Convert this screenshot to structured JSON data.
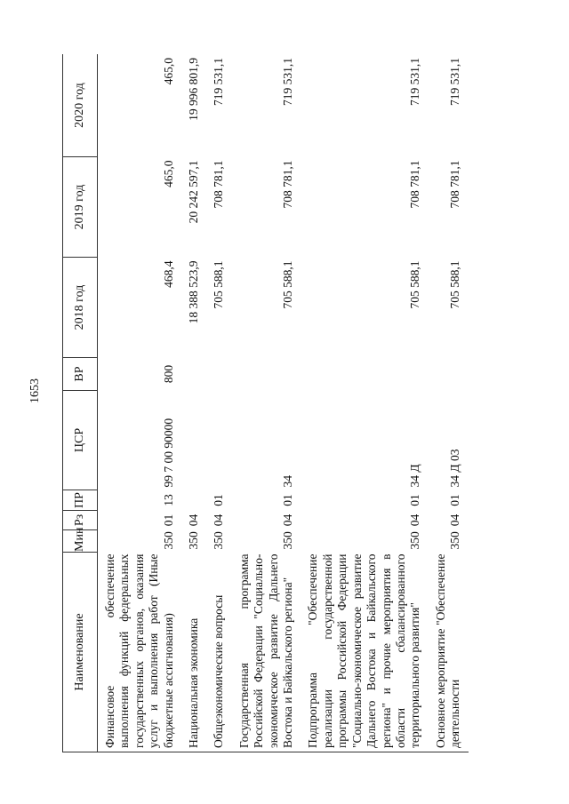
{
  "page_number": "1653",
  "headers": {
    "name": "Наименование",
    "min": "Мин",
    "rz": "Рз",
    "pr": "ПР",
    "csr": "ЦСР",
    "vr": "ВР",
    "y2018": "2018 год",
    "y2019": "2019 год",
    "y2020": "2020 год"
  },
  "rows": [
    {
      "name": "Финансовое обеспечение выполнения функций федеральных государственных органов, оказания услуг и выполнения работ (Иные бюджетные ассигнования)",
      "min": "350",
      "rz": "01",
      "pr": "13",
      "csr": "99 7 00 90000",
      "vr": "800",
      "y2018": "468,4",
      "y2019": "465,0",
      "y2020": "465,0"
    },
    {
      "name": "Национальная экономика",
      "min": "350",
      "rz": "04",
      "pr": "",
      "csr": "",
      "vr": "",
      "y2018": "18 388 523,9",
      "y2019": "20 242 597,1",
      "y2020": "19 996 801,9"
    },
    {
      "name": "Общеэкономические вопросы",
      "min": "350",
      "rz": "04",
      "pr": "01",
      "csr": "",
      "vr": "",
      "y2018": "705 588,1",
      "y2019": "708 781,1",
      "y2020": "719 531,1"
    },
    {
      "name": "Государственная программа Российской Федерации \"Социально-экономическое развитие Дальнего Востока и Байкальского региона\"",
      "min": "350",
      "rz": "04",
      "pr": "01",
      "csr": "34",
      "vr": "",
      "y2018": "705 588,1",
      "y2019": "708 781,1",
      "y2020": "719 531,1"
    },
    {
      "name": "Подпрограмма \"Обеспечение реализации государственной программы Российской Федерации \"Социально-экономическое развитие Дальнего Востока и Байкальского региона\" и прочие мероприятия в области сбалансированного территориального развития\"",
      "min": "350",
      "rz": "04",
      "pr": "01",
      "csr": "34 Д",
      "vr": "",
      "y2018": "705 588,1",
      "y2019": "708 781,1",
      "y2020": "719 531,1"
    },
    {
      "name": "Основное мероприятие \"Обеспечение деятельности",
      "min": "350",
      "rz": "04",
      "pr": "01",
      "csr": "34 Д 03",
      "vr": "",
      "y2018": "705 588,1",
      "y2019": "708 781,1",
      "y2020": "719 531,1"
    }
  ]
}
